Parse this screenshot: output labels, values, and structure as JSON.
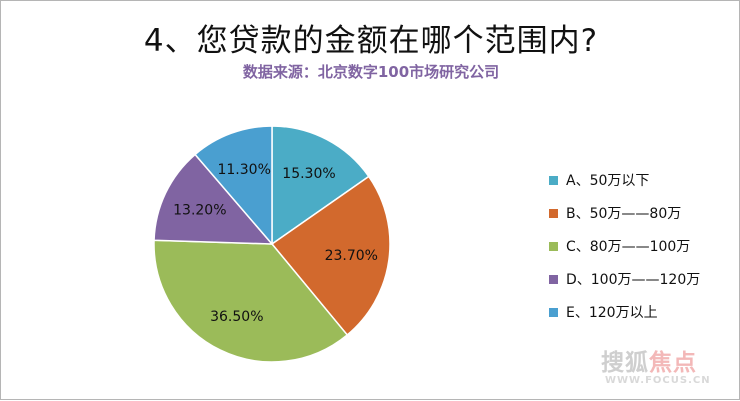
{
  "chart_data": {
    "type": "pie",
    "title": "4、您贷款的金额在哪个范围内?",
    "subtitle": "数据来源：北京数字100市场研究公司",
    "legend_position": "right",
    "slices": [
      {
        "name": "A、50万以下",
        "value": 15.3,
        "label": "15.30%",
        "color": "#4bacc6"
      },
      {
        "name": "B、50万——80万",
        "value": 23.7,
        "label": "23.70%",
        "color": "#d2692d"
      },
      {
        "name": "C、80万——100万",
        "value": 36.5,
        "label": "36.50%",
        "color": "#9bbb59"
      },
      {
        "name": "D、100万——120万",
        "value": 13.2,
        "label": "13.20%",
        "color": "#8064a2"
      },
      {
        "name": "E、120万以上",
        "value": 11.3,
        "label": "11.30%",
        "color": "#4a9fd0"
      }
    ]
  },
  "watermark": {
    "brand_left": "搜狐",
    "brand_right": "焦点",
    "url": "WWW.FOCUS.CN"
  }
}
